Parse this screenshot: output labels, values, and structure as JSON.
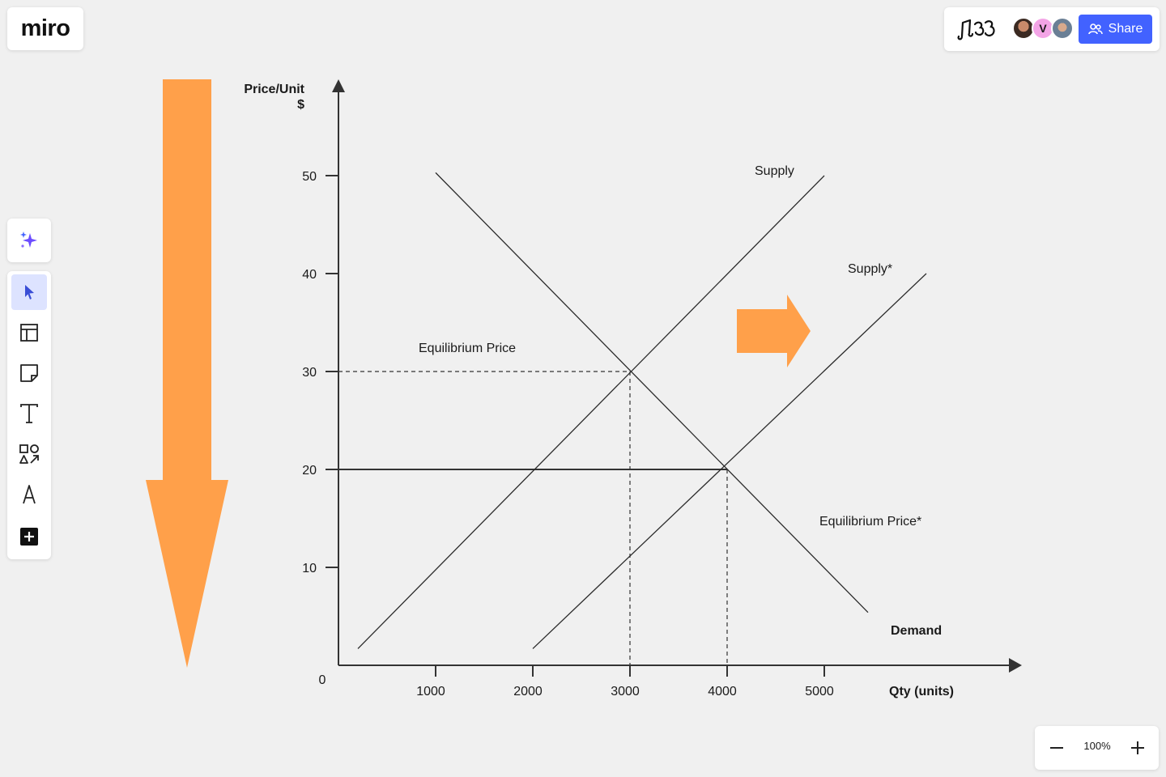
{
  "app": {
    "logo_text": "miro"
  },
  "header": {
    "share_label": "Share",
    "avatars": [
      {
        "name": "user-photo-1",
        "initial": ""
      },
      {
        "name": "user-initial-v",
        "initial": "V"
      },
      {
        "name": "user-photo-2",
        "initial": ""
      }
    ]
  },
  "toolbar": {
    "ai_icon": "sparkles-icon",
    "tools": [
      {
        "name": "select-tool",
        "icon": "cursor-icon",
        "active": true
      },
      {
        "name": "templates-tool",
        "icon": "layout-icon",
        "active": false
      },
      {
        "name": "sticky-note-tool",
        "icon": "sticky-note-icon",
        "active": false
      },
      {
        "name": "text-tool",
        "icon": "text-icon",
        "active": false
      },
      {
        "name": "shapes-tool",
        "icon": "shapes-icon",
        "active": false
      },
      {
        "name": "pen-tool",
        "icon": "pen-icon",
        "active": false
      },
      {
        "name": "more-tools",
        "icon": "plus-square-icon",
        "active": false
      }
    ]
  },
  "zoom": {
    "level": "100%"
  },
  "colors": {
    "accent": "#4262ff",
    "arrow": "#ffa04a",
    "canvas": "#f0f0f0",
    "line": "#2b2b2b"
  },
  "chart_data": {
    "type": "line",
    "ylabel": "Price/Unit",
    "ylabel_unit": "$",
    "xlabel": "Qty (units)",
    "origin_label": "0",
    "xlim": [
      0,
      6000
    ],
    "ylim": [
      0,
      50
    ],
    "x_ticks": [
      1000,
      2000,
      3000,
      4000,
      5000
    ],
    "y_ticks": [
      10,
      20,
      30,
      40,
      50
    ],
    "series": [
      {
        "name": "Supply",
        "points": [
          [
            200,
            1.7
          ],
          [
            5000,
            50
          ]
        ]
      },
      {
        "name": "Supply*",
        "points": [
          [
            2000,
            1.7
          ],
          [
            6050,
            40
          ]
        ]
      },
      {
        "name": "Demand",
        "points": [
          [
            1000,
            50.3
          ],
          [
            5450,
            5.4
          ]
        ]
      }
    ],
    "reference_lines": [
      {
        "label": "Equilibrium Price",
        "price": 30,
        "quantity": 3000,
        "style": "dashed"
      },
      {
        "label": "Equilibrium Price*",
        "price": 20,
        "quantity": 4000,
        "style": "solid"
      }
    ],
    "annotations": [
      "Equilibrium Price",
      "Equilibrium Price*",
      "Supply",
      "Supply*",
      "Demand"
    ],
    "grid": false
  }
}
